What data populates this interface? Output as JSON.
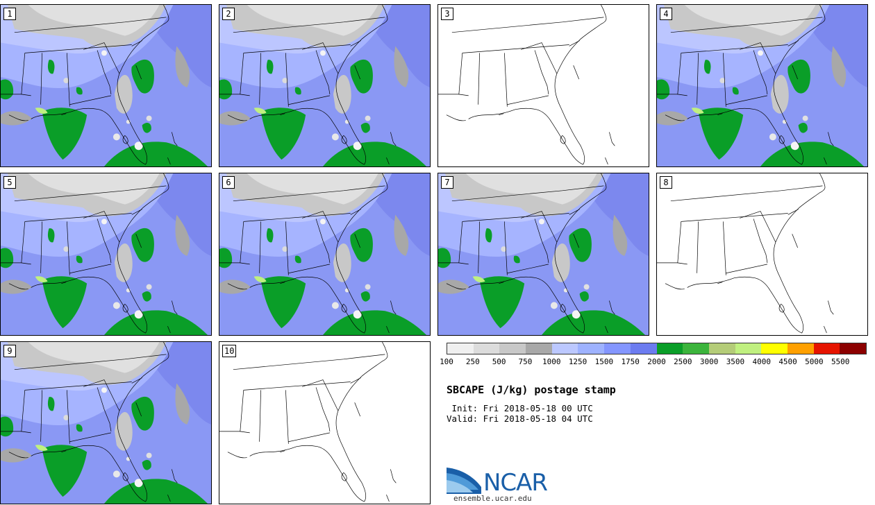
{
  "stamps": [
    {
      "label": "1",
      "has_data": true
    },
    {
      "label": "2",
      "has_data": true
    },
    {
      "label": "3",
      "has_data": false
    },
    {
      "label": "4",
      "has_data": true
    },
    {
      "label": "5",
      "has_data": true
    },
    {
      "label": "6",
      "has_data": true
    },
    {
      "label": "7",
      "has_data": true
    },
    {
      "label": "8",
      "has_data": false
    },
    {
      "label": "9",
      "has_data": true
    },
    {
      "label": "10",
      "has_data": false
    }
  ],
  "colorbar": {
    "colors": [
      "#f0f0f0",
      "#dcdcdc",
      "#c8c8c8",
      "#a8a8a8",
      "#bcc8ff",
      "#9eb2ff",
      "#8496ff",
      "#6c7cf0",
      "#0a9e28",
      "#3cb43c",
      "#b4cc78",
      "#c0f080",
      "#ffff00",
      "#ffa000",
      "#e61400",
      "#8c0000"
    ],
    "tick_labels": [
      "100",
      "250",
      "500",
      "750",
      "1000",
      "1250",
      "1500",
      "1750",
      "2000",
      "2500",
      "3000",
      "3500",
      "4000",
      "4500",
      "5000",
      "5500"
    ]
  },
  "title": "SBCAPE (J/kg) postage stamp",
  "init_text": " Init: Fri 2018-05-18 00 UTC",
  "valid_text": "Valid: Fri 2018-05-18 04 UTC",
  "logo": {
    "text": "NCAR",
    "url": "ensemble.ucar.edu"
  }
}
